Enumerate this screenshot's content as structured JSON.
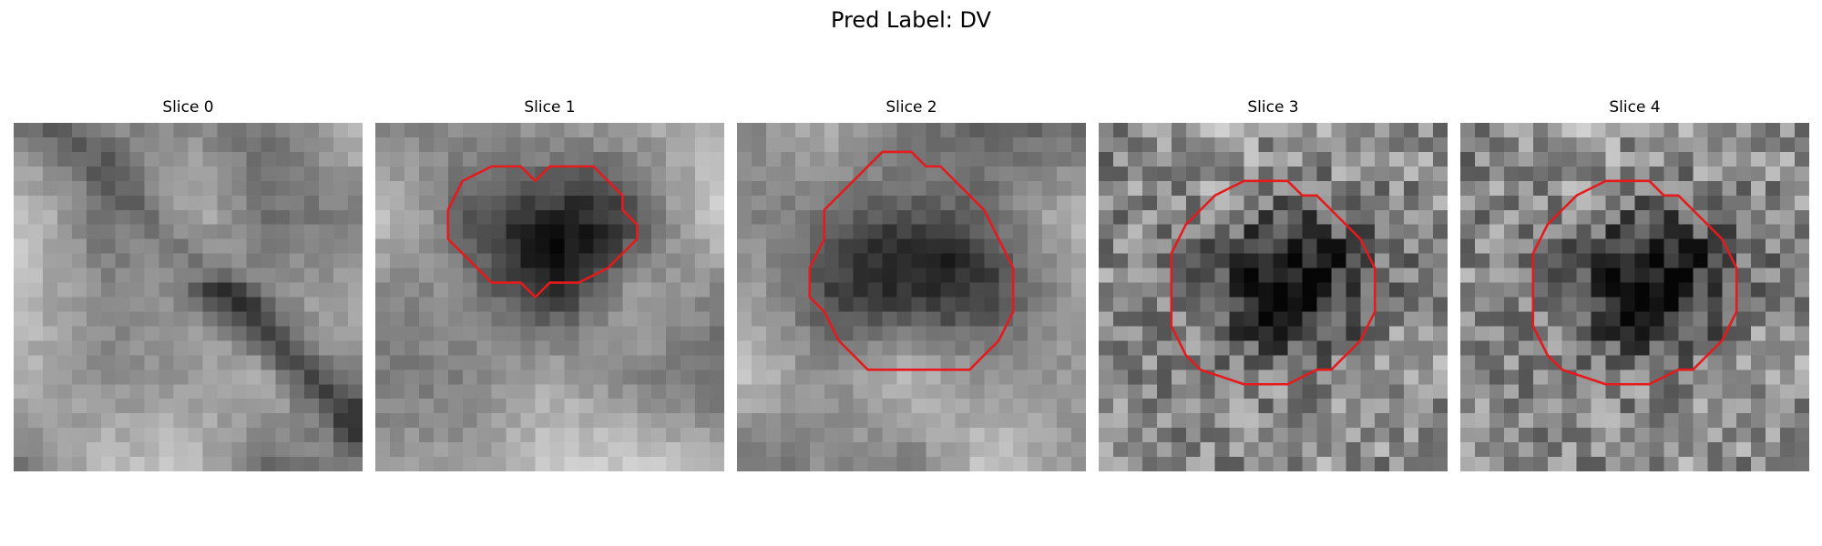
{
  "figure": {
    "title": "Pred Label: DV"
  },
  "panels": [
    {
      "title": "Slice 0",
      "texture": "blurred",
      "seed": 11,
      "contour": []
    },
    {
      "title": "Slice 1",
      "texture": "blurred",
      "seed": 23,
      "contour": [
        [
          11,
          4
        ],
        [
          12,
          3
        ],
        [
          15,
          3
        ],
        [
          16,
          4
        ],
        [
          17,
          5
        ],
        [
          17,
          6
        ],
        [
          18,
          7
        ],
        [
          18,
          8
        ],
        [
          17,
          9
        ],
        [
          16,
          10
        ],
        [
          14,
          11
        ],
        [
          12,
          11
        ],
        [
          11,
          12
        ],
        [
          10,
          11
        ],
        [
          8,
          11
        ],
        [
          6,
          9
        ],
        [
          5,
          8
        ],
        [
          5,
          6
        ],
        [
          6,
          4
        ],
        [
          8,
          3
        ],
        [
          10,
          3
        ]
      ]
    },
    {
      "title": "Slice 2",
      "texture": "blurred",
      "seed": 37,
      "contour": [
        [
          10,
          2
        ],
        [
          12,
          2
        ],
        [
          13,
          3
        ],
        [
          14,
          3
        ],
        [
          16,
          5
        ],
        [
          17,
          6
        ],
        [
          18,
          8
        ],
        [
          19,
          10
        ],
        [
          19,
          13
        ],
        [
          18,
          15
        ],
        [
          17,
          16
        ],
        [
          16,
          17
        ],
        [
          12,
          17
        ],
        [
          9,
          17
        ],
        [
          8,
          16
        ],
        [
          7,
          15
        ],
        [
          6,
          13
        ],
        [
          5,
          12
        ],
        [
          5,
          10
        ],
        [
          6,
          8
        ],
        [
          6,
          6
        ],
        [
          7,
          5
        ],
        [
          8,
          4
        ]
      ]
    },
    {
      "title": "Slice 3",
      "texture": "noisy",
      "seed": 51,
      "contour": [
        [
          10,
          4
        ],
        [
          13,
          4
        ],
        [
          14,
          5
        ],
        [
          15,
          5
        ],
        [
          16,
          6
        ],
        [
          17,
          7
        ],
        [
          18,
          8
        ],
        [
          19,
          10
        ],
        [
          19,
          13
        ],
        [
          18,
          15
        ],
        [
          17,
          16
        ],
        [
          16,
          17
        ],
        [
          15,
          17
        ],
        [
          13,
          18
        ],
        [
          10,
          18
        ],
        [
          7,
          17
        ],
        [
          6,
          16
        ],
        [
          5,
          14
        ],
        [
          5,
          9
        ],
        [
          6,
          7
        ],
        [
          7,
          6
        ],
        [
          8,
          5
        ]
      ]
    },
    {
      "title": "Slice 4",
      "texture": "noisy",
      "seed": 51,
      "contour": [
        [
          10,
          4
        ],
        [
          13,
          4
        ],
        [
          14,
          5
        ],
        [
          15,
          5
        ],
        [
          16,
          6
        ],
        [
          17,
          7
        ],
        [
          18,
          8
        ],
        [
          19,
          10
        ],
        [
          19,
          13
        ],
        [
          18,
          15
        ],
        [
          17,
          16
        ],
        [
          16,
          17
        ],
        [
          15,
          17
        ],
        [
          13,
          18
        ],
        [
          10,
          18
        ],
        [
          7,
          17
        ],
        [
          6,
          16
        ],
        [
          5,
          14
        ],
        [
          5,
          9
        ],
        [
          6,
          7
        ],
        [
          7,
          6
        ],
        [
          8,
          5
        ]
      ]
    }
  ],
  "colors": {
    "contour": "#e41a1c",
    "background": "#ffffff"
  }
}
